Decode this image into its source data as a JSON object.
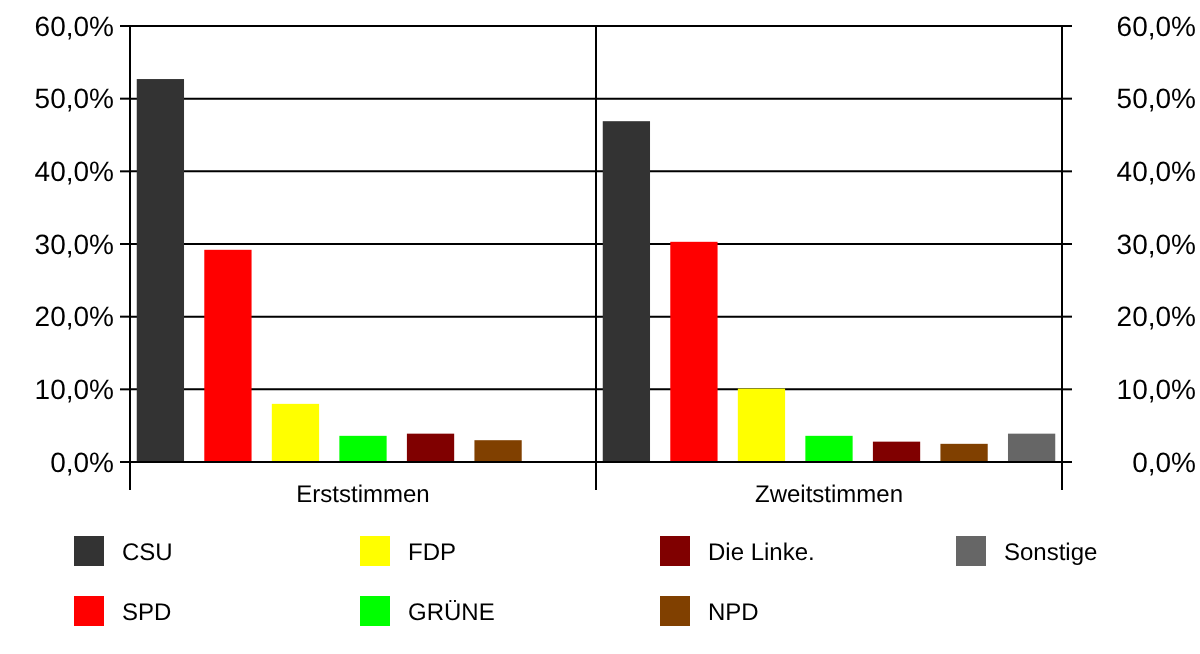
{
  "chart_data": {
    "type": "bar",
    "categories": [
      "Erststimmen",
      "Zweitstimmen"
    ],
    "series": [
      {
        "name": "CSU",
        "color": "#333333",
        "values": [
          52.7,
          46.9
        ]
      },
      {
        "name": "SPD",
        "color": "#ff0000",
        "values": [
          29.2,
          30.3
        ]
      },
      {
        "name": "FDP",
        "color": "#ffff00",
        "values": [
          8.0,
          10.1
        ]
      },
      {
        "name": "GRÜNE",
        "color": "#00ff00",
        "values": [
          3.6,
          3.6
        ]
      },
      {
        "name": "Die Linke.",
        "color": "#800000",
        "values": [
          3.9,
          2.8
        ]
      },
      {
        "name": "NPD",
        "color": "#804000",
        "values": [
          3.0,
          2.5
        ]
      },
      {
        "name": "Sonstige",
        "color": "#666666",
        "values": [
          null,
          3.9
        ]
      }
    ],
    "ylim": [
      0,
      60
    ],
    "yticks": [
      {
        "value": 0,
        "label": "0,0%"
      },
      {
        "value": 10,
        "label": "10,0%"
      },
      {
        "value": 20,
        "label": "20,0%"
      },
      {
        "value": 30,
        "label": "30,0%"
      },
      {
        "value": 40,
        "label": "40,0%"
      },
      {
        "value": 50,
        "label": "50,0%"
      },
      {
        "value": 60,
        "label": "60,0%"
      }
    ],
    "y2lim": [
      0,
      60
    ],
    "y2ticks": [
      {
        "value": 0,
        "label": "0,0%"
      },
      {
        "value": 10,
        "label": "10,0%"
      },
      {
        "value": 20,
        "label": "20,0%"
      },
      {
        "value": 30,
        "label": "30,0%"
      },
      {
        "value": 40,
        "label": "40,0%"
      },
      {
        "value": 50,
        "label": "50,0%"
      },
      {
        "value": 60,
        "label": "60,0%"
      }
    ],
    "grid": "y",
    "legend": "bottom"
  }
}
